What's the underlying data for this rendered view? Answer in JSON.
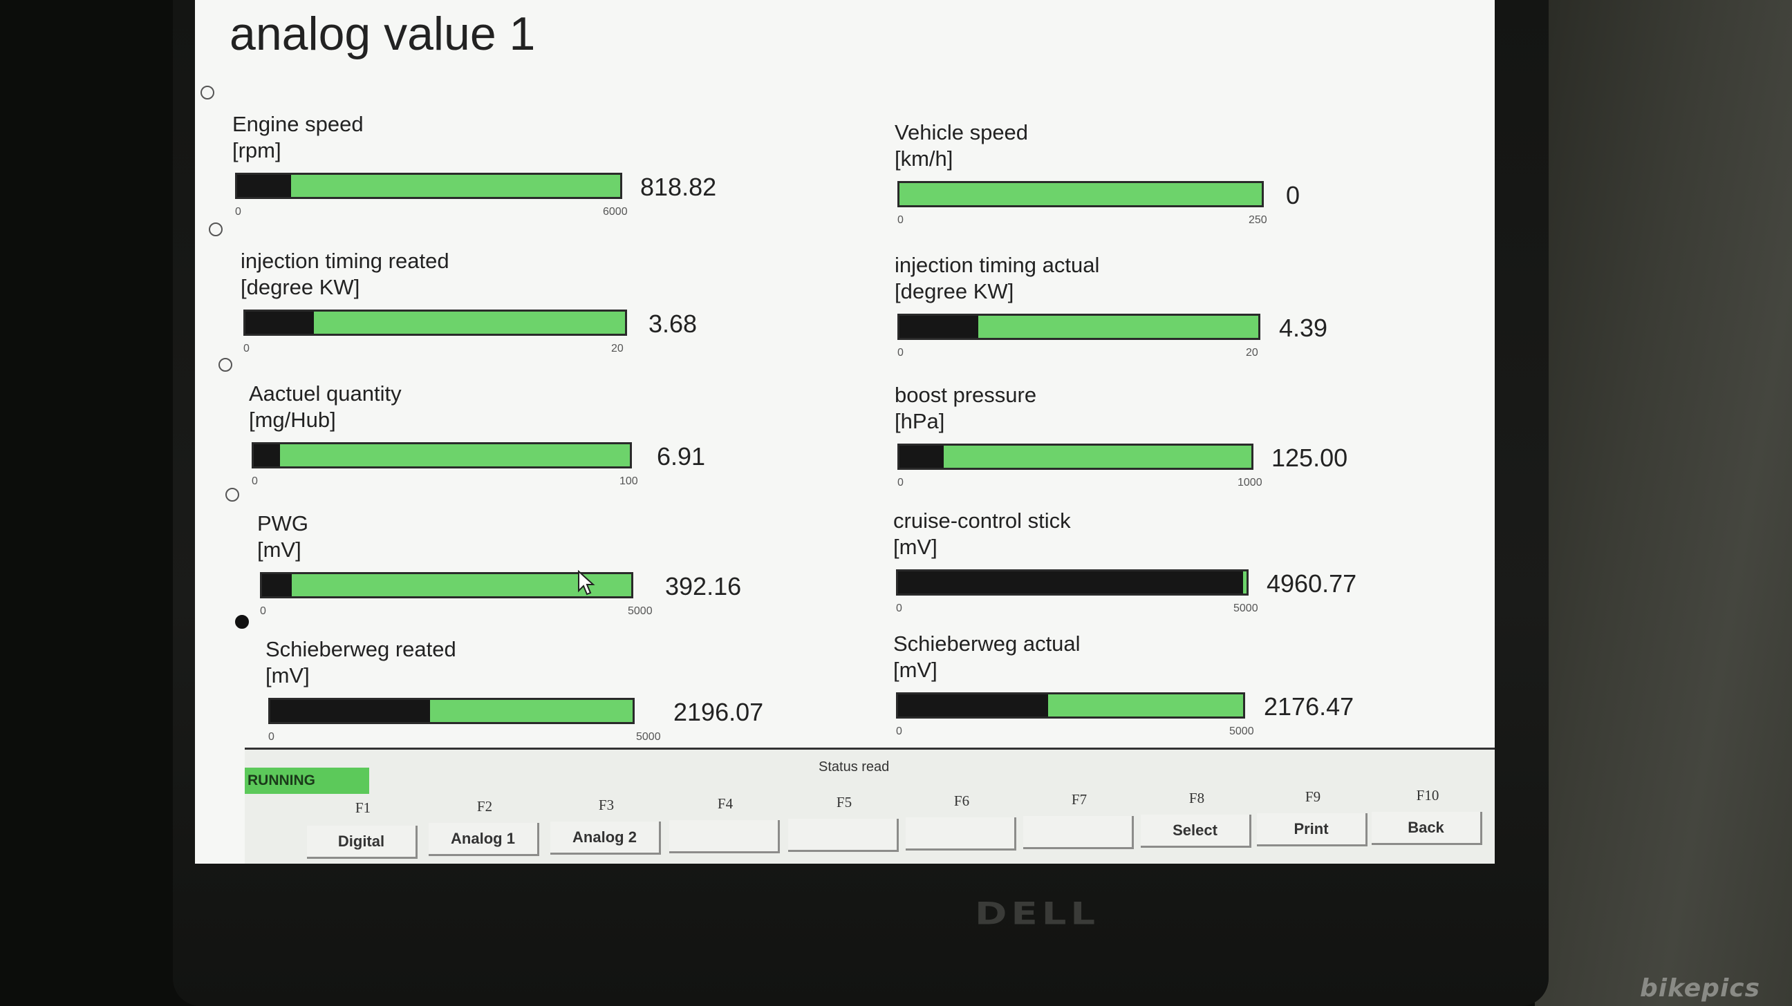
{
  "page": {
    "title": "analog value 1"
  },
  "gauges_left": [
    {
      "name": "Engine speed",
      "unit": "[rpm]",
      "min": "0",
      "max": "6000",
      "value": "818.82",
      "fraction": 0.14
    },
    {
      "name": "injection timing reated",
      "unit": "[degree KW]",
      "min": "0",
      "max": "20",
      "value": "3.68",
      "fraction": 0.18
    },
    {
      "name": "Aactuel quantity",
      "unit": "[mg/Hub]",
      "min": "0",
      "max": "100",
      "value": "6.91",
      "fraction": 0.07
    },
    {
      "name": "PWG",
      "unit": "[mV]",
      "min": "0",
      "max": "5000",
      "value": "392.16",
      "fraction": 0.08
    },
    {
      "name": "Schieberweg reated",
      "unit": "[mV]",
      "min": "0",
      "max": "5000",
      "value": "2196.07",
      "fraction": 0.44
    }
  ],
  "gauges_right": [
    {
      "name": "Vehicle speed",
      "unit": "[km/h]",
      "min": "0",
      "max": "250",
      "value": "0",
      "fraction": 0.0
    },
    {
      "name": "injection timing actual",
      "unit": "[degree KW]",
      "min": "0",
      "max": "20",
      "value": "4.39",
      "fraction": 0.22
    },
    {
      "name": "boost pressure",
      "unit": "[hPa]",
      "min": "0",
      "max": "1000",
      "value": "125.00",
      "fraction": 0.125
    },
    {
      "name": "cruise-control stick",
      "unit": "[mV]",
      "min": "0",
      "max": "5000",
      "value": "4960.77",
      "fraction": 0.99
    },
    {
      "name": "Schieberweg actual",
      "unit": "[mV]",
      "min": "0",
      "max": "5000",
      "value": "2176.47",
      "fraction": 0.435
    }
  ],
  "statusbar": {
    "running_label": "RUNNING",
    "status_text": "Status read"
  },
  "function_keys": [
    {
      "key": "F1",
      "label": "Digital"
    },
    {
      "key": "F2",
      "label": "Analog 1"
    },
    {
      "key": "F3",
      "label": "Analog 2"
    },
    {
      "key": "F4",
      "label": ""
    },
    {
      "key": "F5",
      "label": ""
    },
    {
      "key": "F6",
      "label": ""
    },
    {
      "key": "F7",
      "label": ""
    },
    {
      "key": "F8",
      "label": "Select"
    },
    {
      "key": "F9",
      "label": "Print"
    },
    {
      "key": "F10",
      "label": "Back"
    }
  ],
  "monitor": {
    "brand": "DELL"
  },
  "watermark": "bikepics",
  "colors": {
    "bar_green": "#6dd36b",
    "bar_fill": "#161616",
    "running_green": "#5cc95a"
  }
}
